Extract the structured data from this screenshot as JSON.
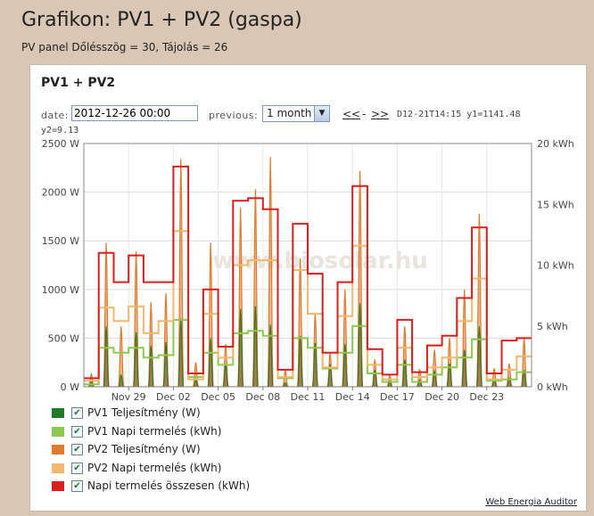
{
  "page": {
    "title": "Grafikon: PV1 + PV2 (gaspa)",
    "subtitle": "PV panel Dőlésszög = 30, Tájolás = 26"
  },
  "panel": {
    "title": "PV1 + PV2",
    "date_label": "date:",
    "date_value": "2012-12-26 00:00",
    "previous_label": "previous:",
    "period_value": "1 month",
    "nav_prev": "<<",
    "nav_sep": "-",
    "nav_next": ">>",
    "readout_line1": "D12-21T14:15 y1=1141.48",
    "readout_line2": "y2=9.13",
    "footer_link": "Web Energia Auditor"
  },
  "colors": {
    "pv1_power": "#1e7b28",
    "pv1_daily": "#8cc850",
    "pv2_power": "#e07a2e",
    "pv2_daily": "#f2b870",
    "total_daily": "#d81e1e"
  },
  "legend": [
    {
      "label": "PV1 Teljesítmény (W)",
      "color": "#1e7b28",
      "checked": true
    },
    {
      "label": "PV1 Napi termelés (kWh)",
      "color": "#8cc850",
      "checked": true
    },
    {
      "label": "PV2 Teljesítmény (W)",
      "color": "#e07a2e",
      "checked": true
    },
    {
      "label": "PV2 Napi termelés (kWh)",
      "color": "#f2b870",
      "checked": true
    },
    {
      "label": "Napi termelés összesen (kWh)",
      "color": "#d81e1e",
      "checked": true
    }
  ],
  "chart_data": {
    "type": "line",
    "watermark": "www.biosolar.hu",
    "y_left": {
      "unit": "W",
      "range": [
        0,
        2500
      ],
      "ticks": [
        "0 W",
        "500 W",
        "1000 W",
        "1500 W",
        "2000 W",
        "2500 W"
      ]
    },
    "y_right": {
      "unit": "kWh",
      "range": [
        0,
        20
      ],
      "ticks": [
        "0 kWh",
        "5 kWh",
        "10 kWh",
        "15 kWh",
        "20 kWh"
      ]
    },
    "x_tick_labels": [
      "Nov 29",
      "Dec 02",
      "Dec 05",
      "Dec 08",
      "Dec 11",
      "Dec 14",
      "Dec 17",
      "Dec 20",
      "Dec 23"
    ],
    "x_tick_days": [
      3,
      6,
      9,
      12,
      15,
      18,
      21,
      24,
      27
    ],
    "days": 30,
    "grid": true,
    "series": [
      {
        "name": "PV1 Teljesítmény (W)",
        "axis": "left",
        "peaks": [
          60,
          620,
          120,
          560,
          420,
          460,
          700,
          70,
          500,
          230,
          800,
          830,
          640,
          40,
          520,
          450,
          230,
          440,
          860,
          170,
          60,
          280,
          70,
          160,
          240,
          380,
          620,
          70,
          90,
          170
        ]
      },
      {
        "name": "PV1 Napi termelés (kWh)",
        "axis": "right",
        "daily": [
          0.2,
          3.2,
          2.8,
          3.2,
          2.4,
          2.6,
          5.5,
          0.8,
          2.8,
          1.8,
          4.4,
          4.6,
          4.2,
          0.7,
          4.0,
          3.2,
          1.5,
          2.8,
          5.0,
          1.1,
          0.4,
          1.8,
          0.4,
          1.0,
          1.6,
          2.4,
          3.9,
          0.5,
          0.6,
          1.2
        ]
      },
      {
        "name": "PV2 Teljesítmény (W)",
        "axis": "left",
        "peaks": [
          130,
          1480,
          620,
          1390,
          870,
          960,
          2340,
          250,
          1480,
          440,
          1840,
          2030,
          2360,
          170,
          1320,
          760,
          350,
          1000,
          2220,
          280,
          120,
          620,
          180,
          380,
          500,
          1000,
          1780,
          190,
          240,
          500
        ]
      },
      {
        "name": "PV2 Napi termelés (kWh)",
        "axis": "right",
        "daily": [
          0.5,
          6.5,
          5.4,
          6.6,
          4.4,
          5.4,
          12.8,
          0.6,
          6.0,
          2.4,
          10.0,
          10.4,
          10.4,
          0.8,
          9.6,
          6.0,
          1.6,
          5.8,
          11.6,
          1.8,
          0.6,
          3.2,
          0.8,
          1.6,
          2.4,
          5.4,
          8.9,
          0.6,
          1.4,
          2.5
        ]
      },
      {
        "name": "Napi termelés összesen (kWh)",
        "axis": "right",
        "daily": [
          0.7,
          11.0,
          8.6,
          10.8,
          8.6,
          8.6,
          18.1,
          1.1,
          8.0,
          3.3,
          15.3,
          15.5,
          14.6,
          1.4,
          13.4,
          9.3,
          2.8,
          8.6,
          16.5,
          3.1,
          1.0,
          5.5,
          1.2,
          3.4,
          4.2,
          7.3,
          13.1,
          1.1,
          3.8,
          4.0
        ]
      }
    ]
  }
}
